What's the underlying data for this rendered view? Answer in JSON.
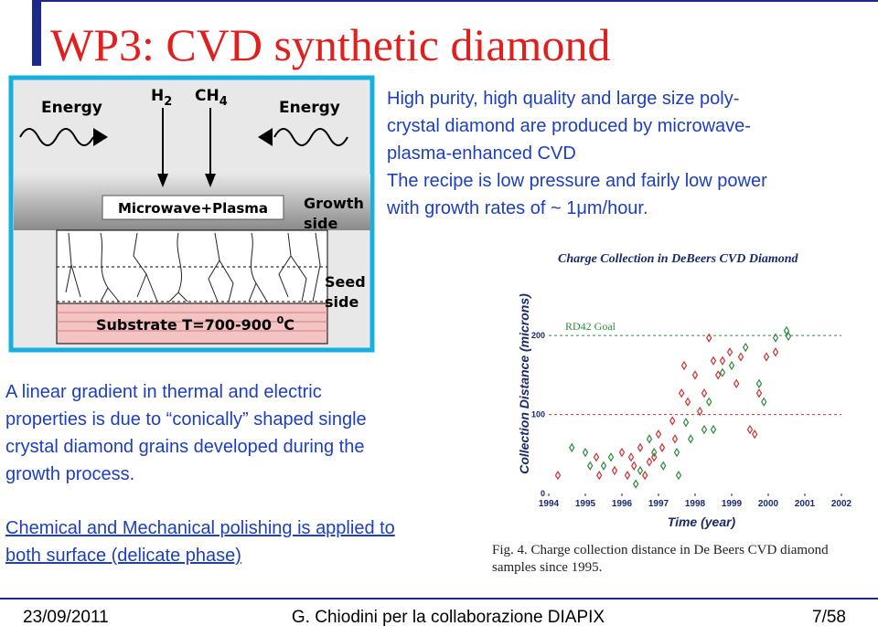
{
  "title": "WP3: CVD synthetic diamond",
  "diagram": {
    "energy_left": "Energy",
    "energy_right": "Energy",
    "h2": {
      "text": "H",
      "sub": "2"
    },
    "ch4": {
      "text": "CH",
      "sub": "4"
    },
    "plasma": "Microwave+Plasma",
    "growth": [
      "Growth",
      "side"
    ],
    "seed": [
      "Seed",
      "side"
    ],
    "substrate": {
      "text": "Substrate T=700-900 ",
      "sup": "0",
      "unit": "C"
    }
  },
  "intro": [
    "High purity, high quality and large size poly-",
    "crystal diamond are produced by microwave-",
    "plasma-enhanced CVD",
    "The recipe is low pressure and fairly low power",
    "with growth rates of ~ 1μm/hour."
  ],
  "gradient": [
    "A linear gradient in thermal and electric",
    "properties is due to “conically” shaped single",
    "crystal diamond grains developed during the",
    "growth process."
  ],
  "polishing": [
    "Chemical and Mechanical polishing is applied to",
    "both surface (delicate phase)"
  ],
  "chart_data": {
    "type": "scatter",
    "title": "Charge Collection in DeBeers CVD Diamond",
    "x_label": "Time (year)",
    "y_label": "Collection Distance (microns)",
    "goal_label": "RD42 Goal",
    "goal": 200,
    "goal_color": "#2e8b3e",
    "xlim": [
      1994,
      2002
    ],
    "xticks": [
      1994,
      1995,
      1996,
      1997,
      1998,
      1999,
      2000,
      2001,
      2002
    ],
    "ylim": [
      0,
      280
    ],
    "yticks": [
      0,
      100,
      200
    ],
    "grid_color": "#d03030",
    "series": [
      {
        "color": "#d03030",
        "x": [
          1994.25,
          1995.3,
          1995.38,
          1995.8,
          1996.0,
          1996.15,
          1996.25,
          1996.33,
          1996.5,
          1996.63,
          1996.75,
          1996.88,
          1997.0,
          1997.1,
          1997.38,
          1997.45,
          1997.63,
          1997.7,
          1997.8,
          1998.0,
          1998.13,
          1998.25,
          1998.38,
          1998.5,
          1998.63,
          1998.75,
          1998.95,
          1999.13,
          1999.25,
          1999.5,
          1999.63,
          1999.75,
          1999.95,
          2000.2
        ],
        "values": [
          23,
          46,
          23,
          29,
          52,
          23,
          46,
          35,
          58,
          23,
          40,
          46,
          75,
          58,
          92,
          69,
          127,
          162,
          116,
          150,
          104,
          127,
          197,
          168,
          150,
          168,
          179,
          139,
          173,
          81,
          75,
          127,
          173,
          179
        ]
      },
      {
        "color": "#2e8b3e",
        "x": [
          1994.63,
          1995.0,
          1995.13,
          1995.5,
          1995.7,
          1996.38,
          1996.5,
          1996.75,
          1996.88,
          1997.13,
          1997.5,
          1997.55,
          1997.75,
          1997.88,
          1998.25,
          1998.38,
          1998.5,
          1998.75,
          1999.0,
          1999.38,
          1999.75,
          1999.88,
          2000.2,
          2000.5,
          2000.55
        ],
        "values": [
          58,
          52,
          35,
          35,
          46,
          12,
          29,
          69,
          52,
          35,
          52,
          23,
          90,
          69,
          81,
          116,
          81,
          153,
          162,
          185,
          139,
          116,
          197,
          206,
          199
        ]
      }
    ],
    "caption": [
      "Fig. 4.  Charge collection distance in De Beers CVD diamond",
      "samples since 1995."
    ]
  },
  "footer": {
    "date": "23/09/2011",
    "author": "G. Chiodini per la collaborazione DIAPIX",
    "page": "7/58"
  }
}
